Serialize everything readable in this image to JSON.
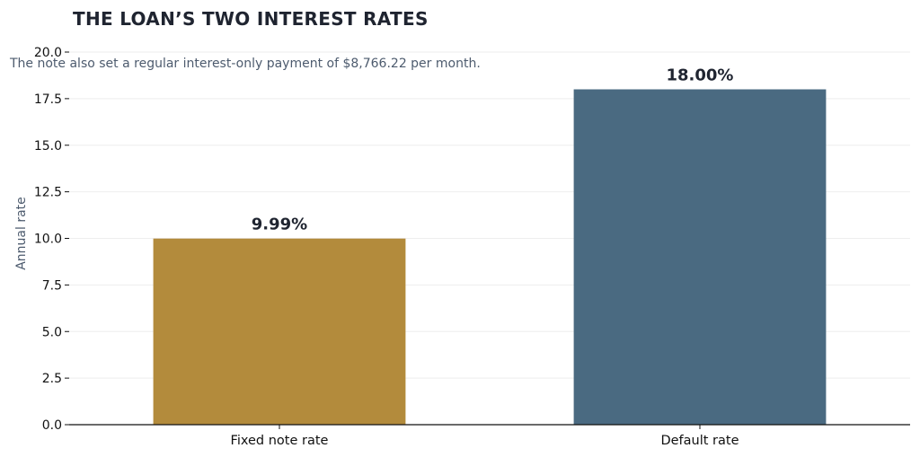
{
  "chart_data": {
    "type": "bar",
    "title": "THE LOAN’S TWO INTEREST RATES",
    "subtitle": "The note also set a regular interest-only payment of $8,766.22 per month.",
    "xlabel": "",
    "ylabel": "Annual rate",
    "ylim": [
      0,
      20
    ],
    "yticks": [
      "0.0",
      "2.5",
      "5.0",
      "7.5",
      "10.0",
      "12.5",
      "15.0",
      "17.5",
      "20.0"
    ],
    "grid": "horizontal",
    "legend": "none",
    "categories": [
      "Fixed note rate",
      "Default rate"
    ],
    "values": [
      9.99,
      18.0
    ],
    "data_labels": [
      "9.99%",
      "18.00%"
    ],
    "colors": [
      "#b38b3c",
      "#4a6a81"
    ]
  }
}
